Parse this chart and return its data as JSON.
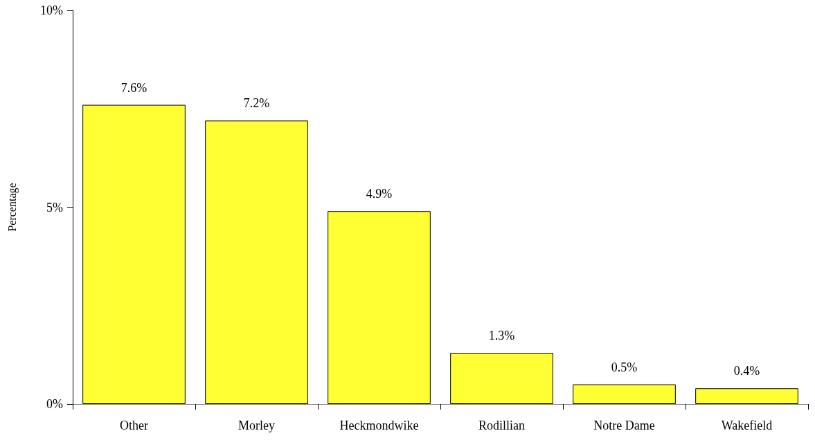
{
  "chart_data": {
    "type": "bar",
    "ylabel": "Percentage",
    "categories": [
      "Other",
      "Morley",
      "Heckmondwike",
      "Rodillian",
      "Notre Dame",
      "Wakefield"
    ],
    "values": [
      7.6,
      7.2,
      4.9,
      1.3,
      0.5,
      0.4
    ],
    "value_labels": [
      "7.6%",
      "7.2%",
      "4.9%",
      "1.3%",
      "0.5%",
      "0.4%"
    ],
    "color": "#ffff33",
    "ylim": [
      0,
      10
    ],
    "yticks": [
      {
        "value": 0,
        "label": "0%"
      },
      {
        "value": 5,
        "label": "5%"
      },
      {
        "value": 10,
        "label": "10%"
      }
    ],
    "grid": false
  }
}
